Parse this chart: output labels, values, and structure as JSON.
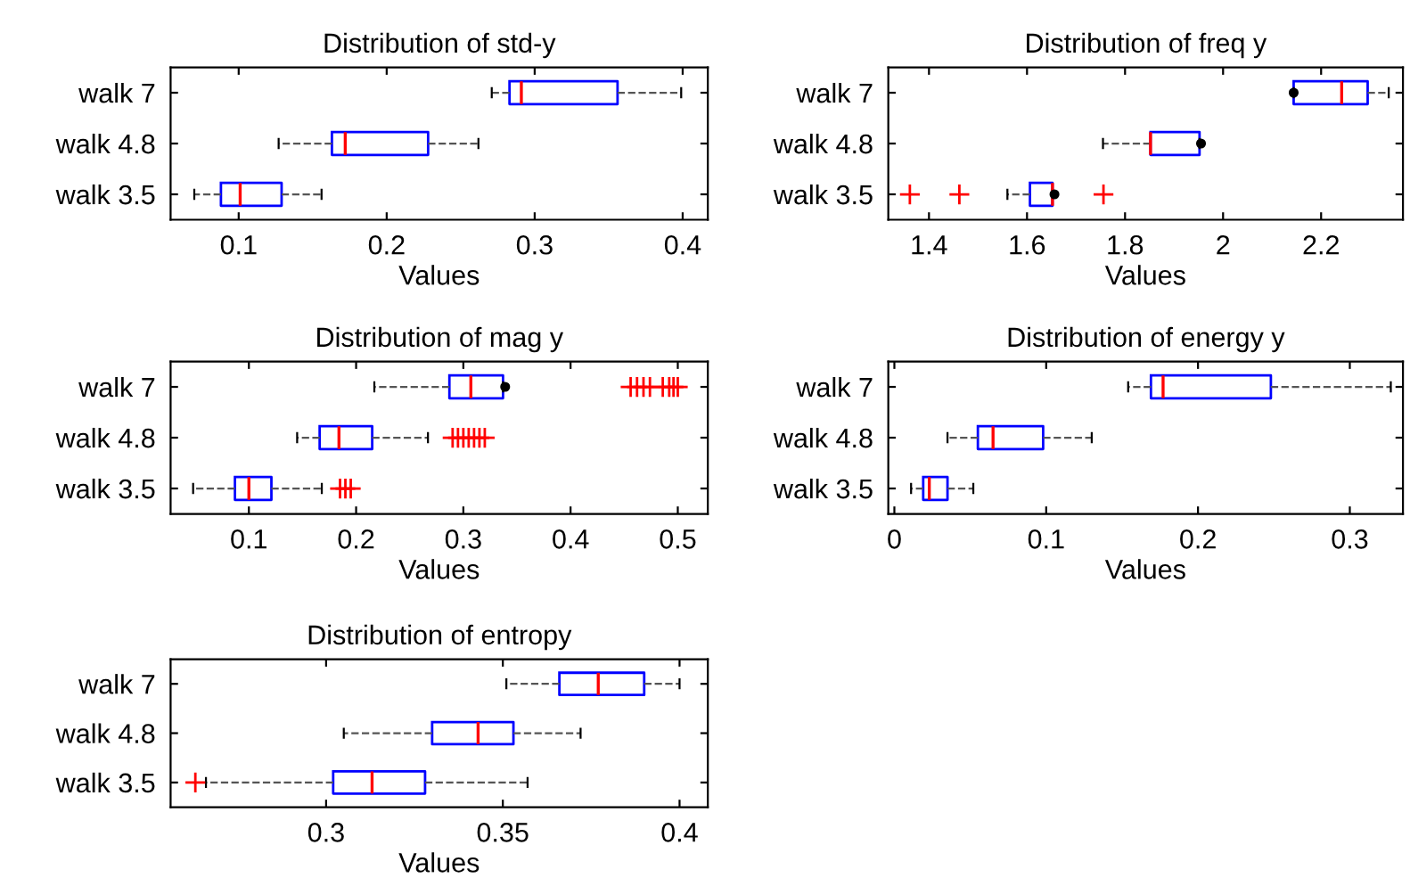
{
  "chart_data": [
    {
      "type": "box",
      "orientation": "horizontal",
      "title": "Distribution of std-y",
      "xlabel": "Values",
      "categories": [
        "walk 7",
        "walk 4.8",
        "walk 3.5"
      ],
      "xlim": [
        0.054,
        0.417
      ],
      "xticks": [
        0.1,
        0.2,
        0.3,
        0.4
      ],
      "grid": false,
      "boxes": [
        {
          "low": 0.271,
          "q1": 0.283,
          "median": 0.291,
          "q3": 0.356,
          "high": 0.399
        },
        {
          "low": 0.127,
          "q1": 0.163,
          "median": 0.172,
          "q3": 0.228,
          "high": 0.262
        },
        {
          "low": 0.07,
          "q1": 0.088,
          "median": 0.101,
          "q3": 0.129,
          "high": 0.156
        }
      ]
    },
    {
      "type": "box",
      "orientation": "horizontal",
      "title": "Distribution of freq y",
      "xlabel": "Values",
      "categories": [
        "walk 7",
        "walk 4.8",
        "walk 3.5"
      ],
      "xlim": [
        1.317,
        2.367
      ],
      "xticks": [
        1.4,
        1.6,
        1.8,
        2,
        2.2
      ],
      "grid": false,
      "boxes": [
        {
          "low": 2.144,
          "q1": 2.144,
          "median": 2.242,
          "q3": 2.295,
          "high": 2.338,
          "mean": 2.144
        },
        {
          "low": 1.755,
          "q1": 1.852,
          "median": 1.852,
          "q3": 1.952,
          "high": 1.952,
          "mean": 1.955
        },
        {
          "low": 1.56,
          "q1": 1.606,
          "median": 1.652,
          "q3": 1.652,
          "high": 1.652,
          "mean": 1.656,
          "outliers": [
            1.361,
            1.462,
            1.756
          ]
        }
      ]
    },
    {
      "type": "box",
      "orientation": "horizontal",
      "title": "Distribution of mag y",
      "xlabel": "Values",
      "categories": [
        "walk 7",
        "walk 4.8",
        "walk 3.5"
      ],
      "xlim": [
        0.027,
        0.528
      ],
      "xticks": [
        0.1,
        0.2,
        0.3,
        0.4,
        0.5
      ],
      "grid": false,
      "boxes": [
        {
          "low": 0.217,
          "q1": 0.287,
          "median": 0.307,
          "q3": 0.337,
          "high": 0.337,
          "mean": 0.339,
          "outliers": [
            0.456,
            0.462,
            0.468,
            0.474,
            0.486,
            0.492,
            0.496,
            0.5
          ]
        },
        {
          "low": 0.145,
          "q1": 0.166,
          "median": 0.184,
          "q3": 0.215,
          "high": 0.267,
          "outliers": [
            0.29,
            0.295,
            0.3,
            0.305,
            0.31,
            0.315,
            0.32
          ]
        },
        {
          "low": 0.048,
          "q1": 0.087,
          "median": 0.1,
          "q3": 0.121,
          "high": 0.168,
          "outliers": [
            0.185,
            0.19,
            0.195
          ]
        }
      ]
    },
    {
      "type": "box",
      "orientation": "horizontal",
      "title": "Distribution of energy y",
      "xlabel": "Values",
      "categories": [
        "walk 7",
        "walk 4.8",
        "walk 3.5"
      ],
      "xlim": [
        -0.004,
        0.335
      ],
      "xticks": [
        0,
        0.1,
        0.2,
        0.3
      ],
      "grid": false,
      "boxes": [
        {
          "low": 0.154,
          "q1": 0.169,
          "median": 0.177,
          "q3": 0.248,
          "high": 0.327
        },
        {
          "low": 0.035,
          "q1": 0.055,
          "median": 0.065,
          "q3": 0.098,
          "high": 0.13
        },
        {
          "low": 0.011,
          "q1": 0.019,
          "median": 0.023,
          "q3": 0.035,
          "high": 0.052
        }
      ]
    },
    {
      "type": "box",
      "orientation": "horizontal",
      "title": "Distribution of entropy",
      "xlabel": "Values",
      "categories": [
        "walk 7",
        "walk 4.8",
        "walk 3.5"
      ],
      "xlim": [
        0.256,
        0.408
      ],
      "xticks": [
        0.3,
        0.35,
        0.4
      ],
      "grid": false,
      "boxes": [
        {
          "low": 0.351,
          "q1": 0.366,
          "median": 0.377,
          "q3": 0.39,
          "high": 0.4
        },
        {
          "low": 0.305,
          "q1": 0.33,
          "median": 0.343,
          "q3": 0.353,
          "high": 0.372
        },
        {
          "low": 0.266,
          "q1": 0.302,
          "median": 0.313,
          "q3": 0.328,
          "high": 0.357,
          "outliers": [
            0.263
          ]
        }
      ]
    }
  ]
}
